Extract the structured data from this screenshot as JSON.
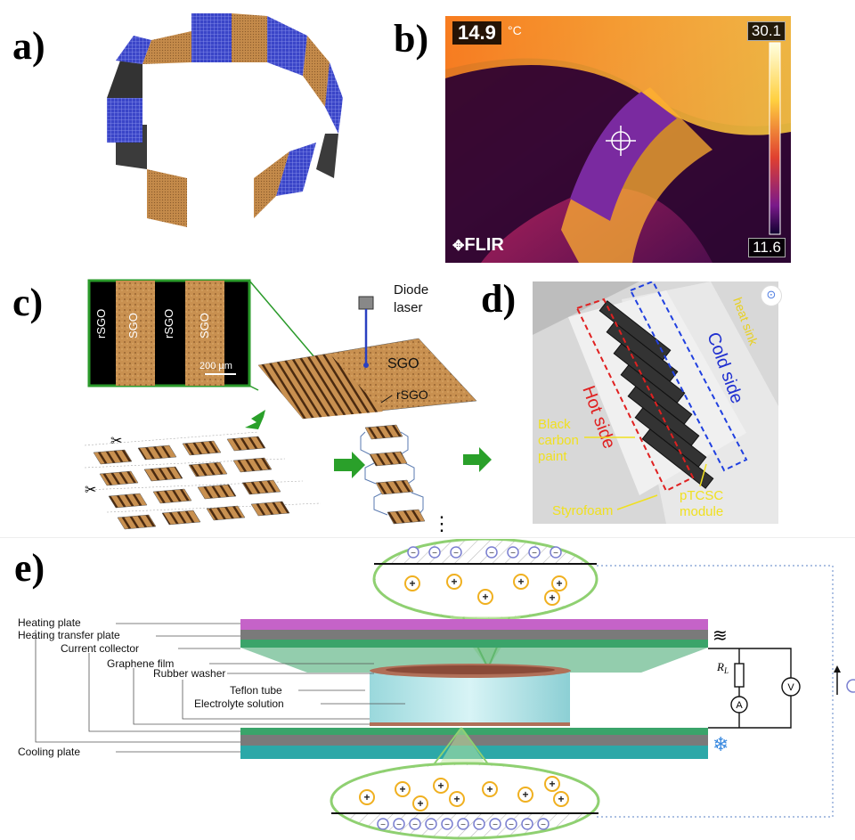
{
  "panels": {
    "a": {
      "label": "a)"
    },
    "b": {
      "label": "b)",
      "spot_temp": "14.9",
      "spot_unit": "°C",
      "scale_max": "30.1",
      "scale_min": "11.6",
      "brand": "FLIR"
    },
    "c": {
      "label": "c)",
      "laser_label_1": "Diode",
      "laser_label_2": "laser",
      "inset_strips": [
        "rSGO",
        "SGO",
        "rSGO",
        "SGO"
      ],
      "scale_bar": "200 µm",
      "sgo": "SGO",
      "rsgo": "rSGO"
    },
    "d": {
      "label": "d)",
      "heat_sink": "heat sink",
      "cold_side": "Cold side",
      "hot_side": "Hot side",
      "black_paint_1": "Black",
      "black_paint_2": "carbon",
      "black_paint_3": "paint",
      "styrofoam": "Styrofoam",
      "ptcsc_1": "pTCSC",
      "ptcsc_2": "module"
    },
    "e": {
      "label": "e)",
      "layers": [
        "Heating  plate",
        "Heating  transfer plate",
        "Current  collector",
        "Graphene  film",
        "Rubber  washer",
        "Teflon  tube",
        "Electrolyte solution",
        "Cooling  plate"
      ],
      "resistor": "R",
      "resistor_sub": "L",
      "ammeter": "A",
      "voltmeter": "V",
      "plus": "+",
      "minus": "−"
    }
  },
  "colors": {
    "heating_plate": "#c563c8",
    "transfer_plate": "#7a7a7a",
    "collector": "#3aa46a",
    "cooling_plate": "#2ca8a8",
    "tube": "#a8e3e6",
    "washer": "#b06f58",
    "bubble_outline": "#8fd071",
    "cation_ring": "#f0b020",
    "anion_ring": "#7a7fd0"
  }
}
